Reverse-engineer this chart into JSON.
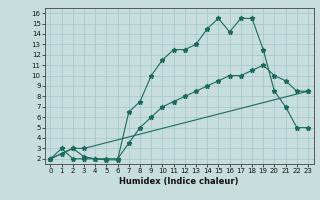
{
  "xlabel": "Humidex (Indice chaleur)",
  "ylabel": "",
  "bg_color": "#c8dede",
  "line_color": "#1a6b5a",
  "xlim": [
    -0.5,
    23.5
  ],
  "ylim": [
    1.5,
    16.5
  ],
  "xticks": [
    0,
    1,
    2,
    3,
    4,
    5,
    6,
    7,
    8,
    9,
    10,
    11,
    12,
    13,
    14,
    15,
    16,
    17,
    18,
    19,
    20,
    21,
    22,
    23
  ],
  "yticks": [
    2,
    3,
    4,
    5,
    6,
    7,
    8,
    9,
    10,
    11,
    12,
    13,
    14,
    15,
    16
  ],
  "line1_x": [
    0,
    1,
    2,
    3,
    4,
    5,
    6,
    7,
    8,
    9,
    10,
    11,
    12,
    13,
    14,
    15,
    16,
    17,
    18,
    19,
    20,
    21,
    22,
    23
  ],
  "line1_y": [
    2,
    3,
    2,
    2,
    2,
    2,
    2,
    3.5,
    5,
    6,
    7,
    7.5,
    8,
    8.5,
    9,
    9.5,
    10,
    10,
    10.5,
    11,
    10,
    9.5,
    8.5,
    8.5
  ],
  "line2_x": [
    0,
    1,
    2,
    3,
    4,
    5,
    6,
    7,
    8,
    9,
    10,
    11,
    12,
    13,
    14,
    15,
    16,
    17,
    18,
    19,
    20,
    21,
    22,
    23
  ],
  "line2_y": [
    2,
    2.5,
    3,
    2.2,
    2,
    1.9,
    1.9,
    6.5,
    7.5,
    10,
    11.5,
    12.5,
    12.5,
    13,
    14.5,
    15.5,
    14.2,
    15.5,
    15.5,
    12.5,
    8.5,
    7,
    5,
    5
  ],
  "line3_x": [
    0,
    2,
    3,
    23
  ],
  "line3_y": [
    2,
    3,
    3,
    8.5
  ],
  "tick_fontsize": 5.0,
  "xlabel_fontsize": 6.0
}
